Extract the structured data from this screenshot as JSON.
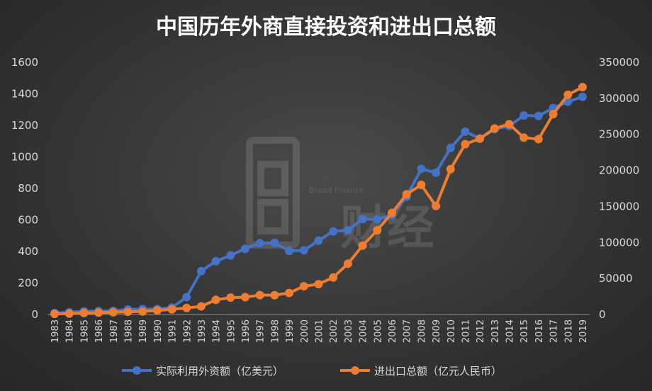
{
  "watermark": {
    "brand_en": "Bread Finance",
    "brand_cn": "财经"
  },
  "chart_data": {
    "type": "line",
    "title": "中国历年外商直接投资和进出口总额",
    "x": [
      "1983",
      "1984",
      "1985",
      "1986",
      "1987",
      "1988",
      "1989",
      "1990",
      "1991",
      "1992",
      "1993",
      "1994",
      "1995",
      "1996",
      "1997",
      "1998",
      "1999",
      "2000",
      "2001",
      "2002",
      "2003",
      "2004",
      "2005",
      "2006",
      "2007",
      "2008",
      "2009",
      "2010",
      "2011",
      "2012",
      "2013",
      "2014",
      "2015",
      "2016",
      "2017",
      "2018",
      "2019"
    ],
    "left_axis": {
      "ylim": [
        0,
        1600
      ],
      "ticks": [
        0,
        200,
        400,
        600,
        800,
        1000,
        1200,
        1400,
        1600
      ]
    },
    "right_axis": {
      "ylim": [
        0,
        350000
      ],
      "ticks": [
        0,
        50000,
        100000,
        150000,
        200000,
        250000,
        300000,
        350000
      ]
    },
    "grid": false,
    "legend_position": "bottom",
    "series": [
      {
        "name": "实际利用外资额（亿美元）",
        "axis": "left",
        "color": "#4472c4",
        "values": [
          9,
          14,
          20,
          22,
          23,
          32,
          34,
          35,
          44,
          110,
          275,
          338,
          375,
          417,
          453,
          455,
          403,
          407,
          469,
          527,
          535,
          606,
          603,
          630,
          748,
          924,
          900,
          1057,
          1160,
          1117,
          1176,
          1196,
          1263,
          1260,
          1310,
          1350,
          1381
        ]
      },
      {
        "name": "进出口总额（亿元人民币）",
        "axis": "right",
        "color": "#ed7d31",
        "values": [
          860,
          1201,
          2067,
          2580,
          3084,
          3822,
          4156,
          5560,
          7226,
          9120,
          11271,
          20382,
          23500,
          24134,
          26967,
          26850,
          29896,
          39273,
          42184,
          51378,
          70484,
          95539,
          116922,
          140975,
          166924,
          179922,
          150648,
          201722,
          236402,
          244160,
          258169,
          264242,
          245503,
          243386,
          278099,
          305010,
          315627
        ]
      }
    ]
  }
}
